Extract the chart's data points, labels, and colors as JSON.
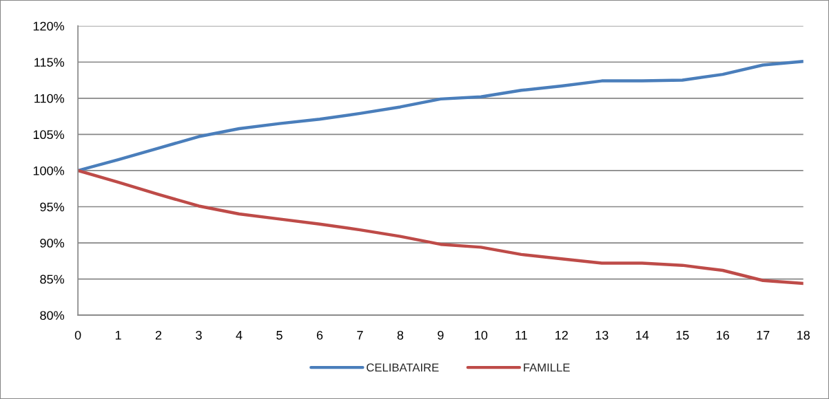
{
  "chart_data": {
    "type": "line",
    "x": [
      0,
      1,
      2,
      3,
      4,
      5,
      6,
      7,
      8,
      9,
      10,
      11,
      12,
      13,
      14,
      15,
      16,
      17,
      18
    ],
    "xlim": [
      0,
      18
    ],
    "xticks": [
      0,
      1,
      2,
      3,
      4,
      5,
      6,
      7,
      8,
      9,
      10,
      11,
      12,
      13,
      14,
      15,
      16,
      17,
      18
    ],
    "ylim": [
      80,
      120
    ],
    "yticks": [
      {
        "value": 80,
        "label": "80%"
      },
      {
        "value": 85,
        "label": "85%"
      },
      {
        "value": 90,
        "label": "90%"
      },
      {
        "value": 95,
        "label": "95%"
      },
      {
        "value": 100,
        "label": "100%"
      },
      {
        "value": 105,
        "label": "105%"
      },
      {
        "value": 110,
        "label": "110%"
      },
      {
        "value": 115,
        "label": "115%"
      },
      {
        "value": 120,
        "label": "120%"
      }
    ],
    "grid": "y",
    "legend": "bottom",
    "line_style": "solid",
    "series": [
      {
        "name": "CELIBATAIRE",
        "color": "#4a7ebb",
        "values": [
          100,
          101.5,
          103.1,
          104.7,
          105.8,
          106.5,
          107.1,
          107.9,
          108.8,
          109.9,
          110.2,
          111.1,
          111.7,
          112.4,
          112.4,
          112.5,
          113.3,
          114.6,
          115.1
        ]
      },
      {
        "name": "FAMILLE",
        "color": "#be4b48",
        "values": [
          100,
          98.4,
          96.7,
          95.1,
          94.0,
          93.3,
          92.6,
          91.8,
          90.9,
          89.8,
          89.4,
          88.4,
          87.8,
          87.2,
          87.2,
          86.9,
          86.2,
          84.8,
          84.4
        ]
      }
    ]
  }
}
